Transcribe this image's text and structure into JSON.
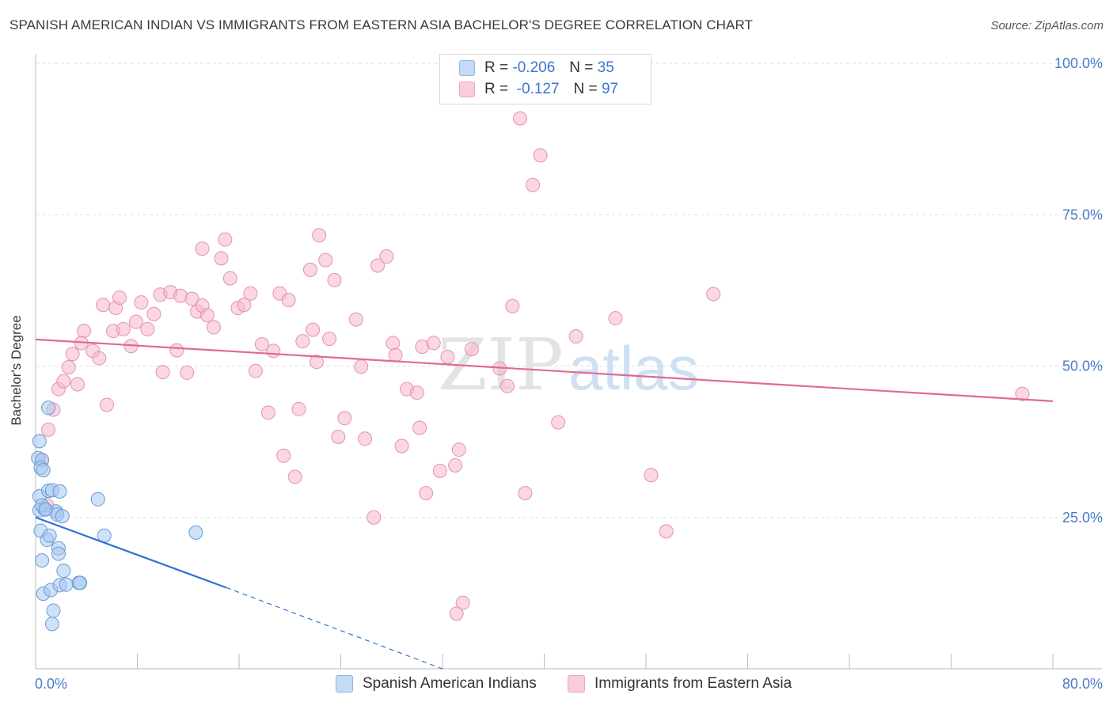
{
  "title": "SPANISH AMERICAN INDIAN VS IMMIGRANTS FROM EASTERN ASIA BACHELOR'S DEGREE CORRELATION CHART",
  "source": "Source: ZipAtlas.com",
  "watermark": {
    "part1": "ZIP",
    "part2": "atlas"
  },
  "legend": {
    "r_label": "R =",
    "n_label": "N =",
    "series": [
      {
        "r": "-0.206",
        "n": "35",
        "color": "#a8c8f0"
      },
      {
        "r": "-0.127",
        "n": "97",
        "color": "#f5b6c8"
      }
    ]
  },
  "colors": {
    "blue_fill": "#a8c8f0",
    "blue_stroke": "#6a9ad8",
    "blue_line": "#2f72d2",
    "pink_fill": "#f5b6c8",
    "pink_stroke": "#e592ae",
    "pink_line": "#e06a95",
    "tick_text": "#4a7cc7",
    "grid": "#dddddd"
  },
  "chart_data": {
    "type": "scatter",
    "title": "SPANISH AMERICAN INDIAN VS IMMIGRANTS FROM EASTERN ASIA BACHELOR'S DEGREE CORRELATION CHART",
    "xlabel": "",
    "ylabel": "Bachelor's Degree",
    "xlim": [
      0,
      80
    ],
    "ylim": [
      0,
      100
    ],
    "x_tick_labels": [
      "0.0%",
      "80.0%"
    ],
    "y_ticks": [
      25,
      50,
      75,
      100
    ],
    "y_tick_labels": [
      "25.0%",
      "50.0%",
      "75.0%",
      "100.0%"
    ],
    "series": [
      {
        "name": "Spanish American Indians",
        "r": -0.206,
        "n": 35,
        "trend": {
          "x0": 0,
          "y0": 25.0,
          "x1": 15,
          "y1": 13.4,
          "dash_to_x": 32,
          "dash_to_y": 0
        },
        "points": [
          [
            0.3,
            37.6
          ],
          [
            0.2,
            34.8
          ],
          [
            0.5,
            34.5
          ],
          [
            0.4,
            33.2
          ],
          [
            0.6,
            32.8
          ],
          [
            1.0,
            43.1
          ],
          [
            0.3,
            28.5
          ],
          [
            1.0,
            29.4
          ],
          [
            1.3,
            29.5
          ],
          [
            1.9,
            29.3
          ],
          [
            0.3,
            26.2
          ],
          [
            0.7,
            26.4
          ],
          [
            1.6,
            26.0
          ],
          [
            1.7,
            25.5
          ],
          [
            2.1,
            25.2
          ],
          [
            0.4,
            22.8
          ],
          [
            0.9,
            21.3
          ],
          [
            1.1,
            22.0
          ],
          [
            1.8,
            19.9
          ],
          [
            1.8,
            19.0
          ],
          [
            0.5,
            17.9
          ],
          [
            2.2,
            16.2
          ],
          [
            0.6,
            12.4
          ],
          [
            1.2,
            13.0
          ],
          [
            1.9,
            13.8
          ],
          [
            2.4,
            13.9
          ],
          [
            3.4,
            14.2
          ],
          [
            3.5,
            14.2
          ],
          [
            1.4,
            9.6
          ],
          [
            1.3,
            7.4
          ],
          [
            4.9,
            28.0
          ],
          [
            5.4,
            22.0
          ],
          [
            12.6,
            22.5
          ],
          [
            0.5,
            27.0
          ],
          [
            0.8,
            26.3
          ]
        ]
      },
      {
        "name": "Immigrants from Eastern Asia",
        "r": -0.127,
        "n": 97,
        "trend": {
          "x0": 0,
          "y0": 54.4,
          "x1": 80,
          "y1": 44.2
        },
        "points": [
          [
            0.5,
            34.5
          ],
          [
            1.0,
            39.5
          ],
          [
            1.4,
            42.8
          ],
          [
            0.9,
            27.0
          ],
          [
            1.8,
            46.2
          ],
          [
            2.2,
            47.5
          ],
          [
            2.6,
            49.8
          ],
          [
            2.9,
            52.0
          ],
          [
            3.3,
            47.0
          ],
          [
            3.8,
            55.8
          ],
          [
            3.6,
            53.8
          ],
          [
            4.5,
            52.5
          ],
          [
            5.0,
            51.3
          ],
          [
            5.3,
            60.1
          ],
          [
            5.6,
            43.6
          ],
          [
            6.1,
            55.8
          ],
          [
            6.3,
            59.6
          ],
          [
            6.6,
            61.3
          ],
          [
            6.9,
            56.1
          ],
          [
            7.5,
            53.3
          ],
          [
            7.9,
            57.3
          ],
          [
            8.3,
            60.5
          ],
          [
            8.8,
            56.1
          ],
          [
            9.3,
            58.6
          ],
          [
            9.8,
            61.8
          ],
          [
            10.0,
            49.0
          ],
          [
            10.6,
            62.2
          ],
          [
            11.1,
            52.6
          ],
          [
            11.4,
            61.6
          ],
          [
            11.9,
            48.9
          ],
          [
            12.3,
            61.1
          ],
          [
            12.7,
            59.0
          ],
          [
            13.1,
            60.0
          ],
          [
            13.5,
            58.4
          ],
          [
            14.0,
            56.4
          ],
          [
            13.1,
            69.4
          ],
          [
            14.9,
            70.9
          ],
          [
            14.6,
            67.8
          ],
          [
            15.3,
            64.5
          ],
          [
            15.9,
            59.6
          ],
          [
            16.4,
            60.1
          ],
          [
            16.9,
            62.0
          ],
          [
            17.3,
            49.2
          ],
          [
            17.8,
            53.6
          ],
          [
            18.3,
            42.3
          ],
          [
            18.7,
            52.5
          ],
          [
            19.2,
            62.0
          ],
          [
            19.5,
            35.2
          ],
          [
            19.9,
            60.9
          ],
          [
            20.4,
            31.7
          ],
          [
            20.7,
            42.9
          ],
          [
            21.0,
            54.1
          ],
          [
            21.6,
            65.9
          ],
          [
            22.1,
            50.7
          ],
          [
            22.3,
            71.6
          ],
          [
            22.8,
            67.5
          ],
          [
            23.1,
            54.5
          ],
          [
            23.5,
            64.2
          ],
          [
            23.8,
            38.3
          ],
          [
            24.3,
            41.4
          ],
          [
            25.2,
            57.7
          ],
          [
            25.6,
            49.9
          ],
          [
            25.9,
            38.0
          ],
          [
            26.6,
            25.0
          ],
          [
            26.9,
            66.6
          ],
          [
            27.6,
            68.1
          ],
          [
            28.1,
            53.8
          ],
          [
            28.3,
            51.8
          ],
          [
            28.8,
            36.8
          ],
          [
            29.2,
            46.2
          ],
          [
            30.0,
            45.6
          ],
          [
            30.2,
            39.8
          ],
          [
            30.4,
            53.2
          ],
          [
            30.7,
            29.0
          ],
          [
            31.3,
            53.8
          ],
          [
            31.8,
            32.7
          ],
          [
            32.4,
            51.5
          ],
          [
            33.0,
            33.6
          ],
          [
            33.3,
            36.2
          ],
          [
            33.6,
            10.9
          ],
          [
            33.1,
            9.1
          ],
          [
            34.3,
            52.8
          ],
          [
            37.1,
            46.7
          ],
          [
            37.5,
            59.9
          ],
          [
            38.1,
            90.9
          ],
          [
            38.5,
            29.0
          ],
          [
            39.1,
            79.9
          ],
          [
            39.7,
            84.8
          ],
          [
            41.1,
            40.7
          ],
          [
            42.5,
            54.9
          ],
          [
            45.6,
            57.9
          ],
          [
            48.4,
            32.0
          ],
          [
            49.6,
            22.7
          ],
          [
            53.3,
            61.9
          ],
          [
            77.6,
            45.4
          ],
          [
            36.5,
            49.6
          ],
          [
            21.8,
            56.0
          ]
        ]
      }
    ]
  }
}
